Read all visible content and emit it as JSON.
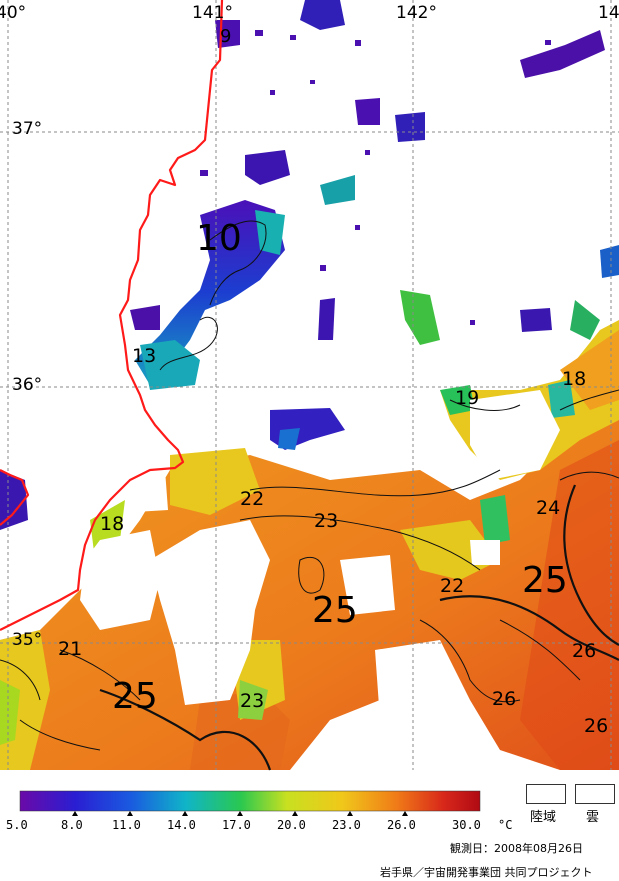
{
  "map": {
    "longitude_labels": [
      "40°",
      "141°",
      "142°",
      "14"
    ],
    "latitude_labels": [
      "37°",
      "36°",
      "35°"
    ],
    "contour_labels": [
      {
        "text": "9",
        "size": "small"
      },
      {
        "text": "10",
        "size": "large"
      },
      {
        "text": "13",
        "size": "small"
      },
      {
        "text": "18",
        "size": "small"
      },
      {
        "text": "19",
        "size": "small"
      },
      {
        "text": "18",
        "size": "small"
      },
      {
        "text": "22",
        "size": "small"
      },
      {
        "text": "23",
        "size": "small"
      },
      {
        "text": "24",
        "size": "small"
      },
      {
        "text": "25",
        "size": "large"
      },
      {
        "text": "25",
        "size": "large"
      },
      {
        "text": "22",
        "size": "small"
      },
      {
        "text": "21",
        "size": "small"
      },
      {
        "text": "25",
        "size": "large"
      },
      {
        "text": "23",
        "size": "small"
      },
      {
        "text": "26",
        "size": "small"
      },
      {
        "text": "26",
        "size": "small"
      },
      {
        "text": "26",
        "size": "small"
      }
    ],
    "colors": {
      "coastline": "#ff1a1a",
      "cold": "#5a0fa8",
      "cool": "#1c4fd0",
      "mid": "#20c050",
      "warm_yellow": "#e6d21e",
      "warm_orange": "#f08a1e",
      "hot": "#e8581a"
    }
  },
  "colorbar": {
    "ticks": [
      "5.0",
      "8.0",
      "11.0",
      "14.0",
      "17.0",
      "20.0",
      "23.0",
      "26.0",
      "30.0"
    ],
    "unit": "°C",
    "stops": [
      "#6a0aa8",
      "#2a1ed2",
      "#1a5ae0",
      "#10b4c8",
      "#2ac850",
      "#c8e020",
      "#f0c81a",
      "#f07a18",
      "#d8281a",
      "#b00a14"
    ]
  },
  "legend": {
    "land_label": "陸域",
    "cloud_label": "雲"
  },
  "footer": {
    "observation_date": "観測日：2008年08月26日",
    "credit": "岩手県／宇宙開発事業団 共同プロジェクト"
  }
}
